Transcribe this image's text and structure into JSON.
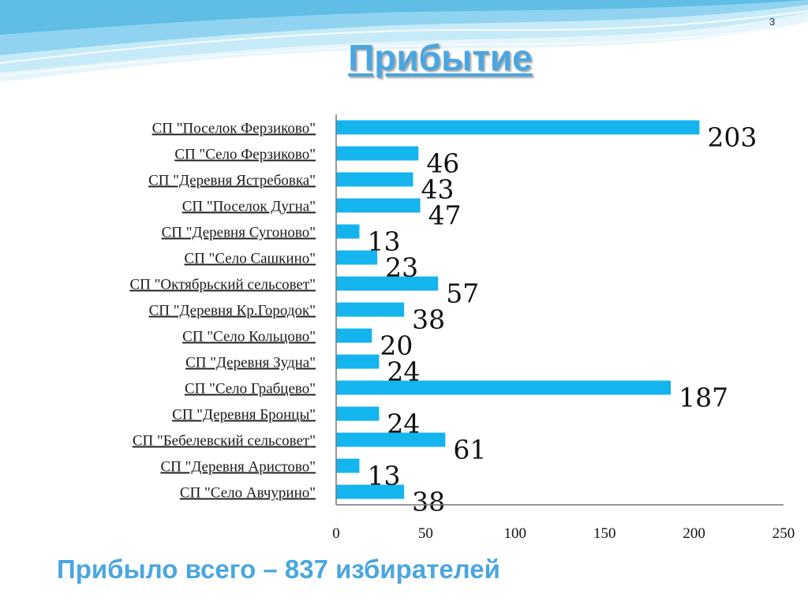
{
  "slide": {
    "number": "3",
    "title": "Прибытие",
    "footer": "Прибыло всего – 837 избирателей"
  },
  "colors": {
    "bar": "#14b4ee",
    "title": "#4aa6df",
    "wave_light": "#b8e3f5",
    "wave_dark": "#2a9cd6"
  },
  "chart_data": {
    "type": "bar",
    "orientation": "horizontal",
    "categories": [
      "СП \"Поселок Ферзиково\"",
      "СП \"Село Ферзиково\"",
      "СП \"Деревня Ястребовка\"",
      "СП \"Поселок Дугна\"",
      "СП \"Деревня Сугоново\"",
      "СП \"Село Сашкино\"",
      "СП \"Октябрьский сельсовет\"",
      "СП \"Деревня Кр.Городок\"",
      "СП \"Село Кольцово\"",
      "СП \"Деревня Зудна\"",
      "СП \"Село Грабцево\"",
      "СП \"Деревня Бронцы\"",
      "СП \"Бебелевский сельсовет\"",
      "СП \"Деревня Аристово\"",
      "СП \"Село Авчурино\""
    ],
    "values": [
      203,
      46,
      43,
      47,
      13,
      23,
      57,
      38,
      20,
      24,
      187,
      24,
      61,
      13,
      38
    ],
    "xlim": [
      0,
      250
    ],
    "xticks": [
      0,
      50,
      100,
      150,
      200,
      250
    ],
    "grid": false,
    "legend": "none"
  }
}
